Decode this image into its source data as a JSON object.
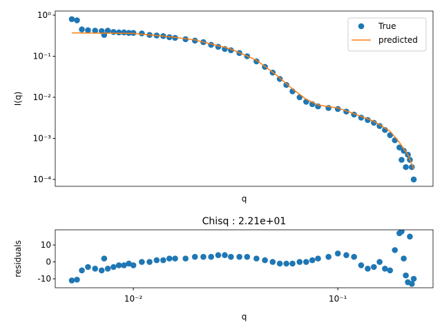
{
  "chart_data": [
    {
      "type": "scatter",
      "xlabel": "q",
      "ylabel": "I(q)",
      "log_x": true,
      "log_y": true,
      "legend": "upper right",
      "xlim": [
        0.00415,
        0.292
      ],
      "ylim": [
        6.8e-05,
        1.26
      ],
      "yticks": [
        {
          "value": 0.0001,
          "label": "10⁻⁴"
        },
        {
          "value": 0.001,
          "label": "10⁻³"
        },
        {
          "value": 0.01,
          "label": "10⁻²"
        },
        {
          "value": 0.1,
          "label": "10⁻¹"
        },
        {
          "value": 1,
          "label": "10⁰"
        }
      ],
      "series": [
        {
          "name": "True",
          "type": "scatter",
          "color": "#1f77b4",
          "x": [
            0.005,
            0.0053,
            0.0056,
            0.006,
            0.0065,
            0.007,
            0.0072,
            0.0075,
            0.008,
            0.0085,
            0.009,
            0.0095,
            0.01,
            0.011,
            0.012,
            0.013,
            0.014,
            0.015,
            0.016,
            0.018,
            0.02,
            0.022,
            0.024,
            0.026,
            0.028,
            0.03,
            0.033,
            0.036,
            0.04,
            0.044,
            0.048,
            0.052,
            0.056,
            0.06,
            0.065,
            0.07,
            0.075,
            0.08,
            0.09,
            0.1,
            0.11,
            0.12,
            0.13,
            0.14,
            0.15,
            0.16,
            0.17,
            0.18,
            0.19,
            0.2,
            0.205,
            0.21,
            0.215,
            0.22,
            0.225,
            0.23,
            0.235
          ],
          "values": [
            0.8,
            0.75,
            0.45,
            0.43,
            0.42,
            0.41,
            0.33,
            0.42,
            0.39,
            0.38,
            0.38,
            0.37,
            0.37,
            0.36,
            0.33,
            0.32,
            0.31,
            0.29,
            0.28,
            0.26,
            0.24,
            0.22,
            0.19,
            0.17,
            0.15,
            0.14,
            0.12,
            0.1,
            0.075,
            0.055,
            0.04,
            0.028,
            0.02,
            0.014,
            0.01,
            0.0078,
            0.0068,
            0.006,
            0.0055,
            0.0052,
            0.0045,
            0.0038,
            0.0032,
            0.0028,
            0.0024,
            0.002,
            0.0016,
            0.0012,
            0.0009,
            0.0006,
            0.0003,
            0.0005,
            0.0002,
            0.0004,
            0.0003,
            0.0002,
            0.0001
          ]
        },
        {
          "name": "predicted",
          "type": "line",
          "color": "#ff7f0e",
          "x": [
            0.005,
            0.01,
            0.015,
            0.02,
            0.03,
            0.04,
            0.05,
            0.06,
            0.07,
            0.08,
            0.1,
            0.12,
            0.15,
            0.18,
            0.2,
            0.22,
            0.235
          ],
          "values": [
            0.37,
            0.36,
            0.3,
            0.25,
            0.15,
            0.08,
            0.035,
            0.016,
            0.009,
            0.0065,
            0.0055,
            0.004,
            0.0026,
            0.0015,
            0.0008,
            0.0004,
            0.00018
          ]
        }
      ]
    },
    {
      "type": "scatter",
      "title": "Chisq : 2.21e+01",
      "xlabel": "q",
      "ylabel": "residuals",
      "log_x": true,
      "log_y": false,
      "xlim": [
        0.00415,
        0.292
      ],
      "ylim": [
        -15.3,
        19.0
      ],
      "xticks": [
        {
          "value": 0.01,
          "label": "10⁻²"
        },
        {
          "value": 0.1,
          "label": "10⁻¹"
        }
      ],
      "yticks": [
        -10,
        0,
        10
      ],
      "series": [
        {
          "type": "scatter",
          "color": "#1f77b4",
          "x": [
            0.005,
            0.0053,
            0.0056,
            0.006,
            0.0065,
            0.007,
            0.0072,
            0.0075,
            0.008,
            0.0085,
            0.009,
            0.0095,
            0.01,
            0.011,
            0.012,
            0.013,
            0.014,
            0.015,
            0.016,
            0.018,
            0.02,
            0.022,
            0.024,
            0.026,
            0.028,
            0.03,
            0.033,
            0.036,
            0.04,
            0.044,
            0.048,
            0.052,
            0.056,
            0.06,
            0.065,
            0.07,
            0.075,
            0.08,
            0.09,
            0.1,
            0.11,
            0.12,
            0.13,
            0.14,
            0.15,
            0.16,
            0.17,
            0.18,
            0.19,
            0.2,
            0.205,
            0.21,
            0.215,
            0.22,
            0.225,
            0.23,
            0.235
          ],
          "values": [
            -11,
            -10.5,
            -5,
            -3,
            -4,
            -5,
            2,
            -4,
            -3,
            -2,
            -2,
            -1,
            -2,
            0,
            0,
            1,
            1,
            2,
            2,
            2,
            3,
            3,
            3,
            4,
            4,
            3,
            3,
            3,
            2,
            1,
            0,
            -1,
            -1,
            -1,
            0,
            0,
            1,
            2,
            3,
            5,
            4,
            3,
            -2,
            -4,
            -3,
            0,
            -4,
            -5,
            7,
            17,
            18,
            2,
            -8,
            -12,
            15,
            -13,
            -10
          ]
        }
      ]
    }
  ]
}
